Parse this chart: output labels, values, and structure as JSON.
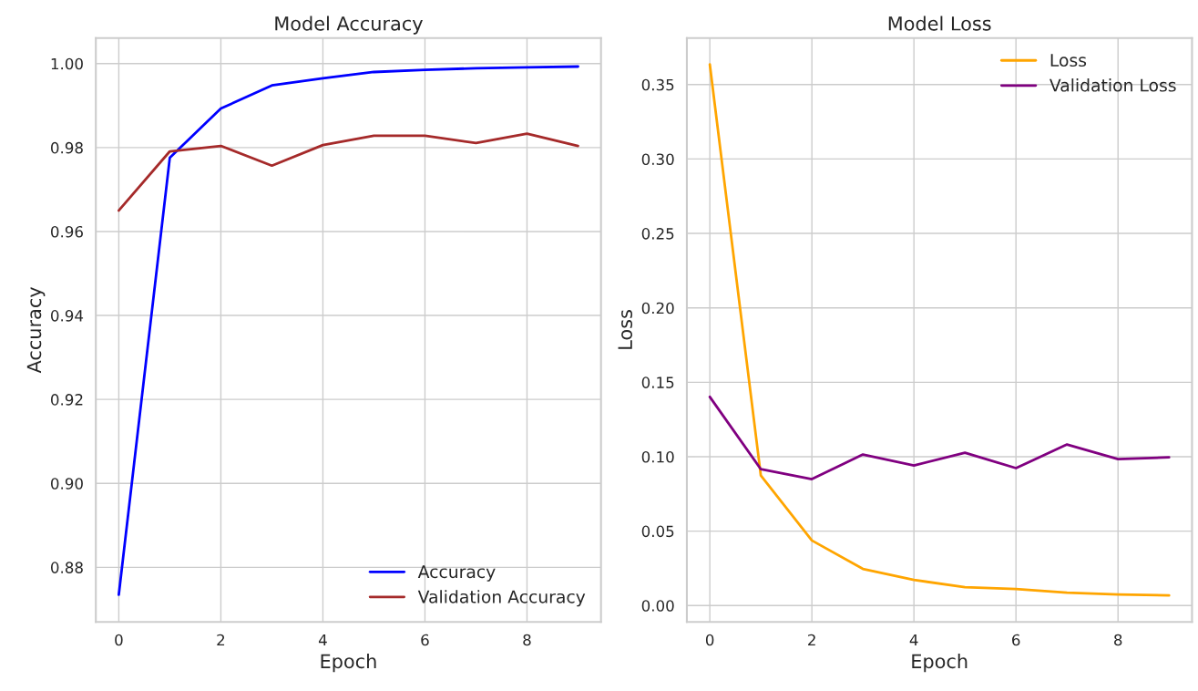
{
  "chart_data": [
    {
      "type": "line",
      "title": "Model Accuracy",
      "xlabel": "Epoch",
      "ylabel": "Accuracy",
      "x": [
        0,
        1,
        2,
        3,
        4,
        5,
        6,
        7,
        8,
        9
      ],
      "series": [
        {
          "name": "Accuracy",
          "color": "#0000ff",
          "values": [
            0.8735,
            0.9776,
            0.9893,
            0.9948,
            0.9965,
            0.998,
            0.9985,
            0.9989,
            0.9991,
            0.9993
          ]
        },
        {
          "name": "Validation Accuracy",
          "color": "#a52a2a",
          "values": [
            0.965,
            0.9791,
            0.9804,
            0.9757,
            0.9806,
            0.9828,
            0.9828,
            0.9811,
            0.9833,
            0.9804
          ]
        }
      ],
      "xlim": [
        -0.45,
        9.45
      ],
      "xticks": [
        0,
        2,
        4,
        6,
        8
      ],
      "ylim": [
        0.867,
        1.0061
      ],
      "yticks": [
        {
          "value": 0.88,
          "label": "0.88"
        },
        {
          "value": 0.9,
          "label": "0.90"
        },
        {
          "value": 0.92,
          "label": "0.92"
        },
        {
          "value": 0.94,
          "label": "0.94"
        },
        {
          "value": 0.96,
          "label": "0.96"
        },
        {
          "value": 0.98,
          "label": "0.98"
        },
        {
          "value": 1.0,
          "label": "1.00"
        }
      ],
      "grid": true,
      "legend": "bottom right"
    },
    {
      "type": "line",
      "title": "Model Loss",
      "xlabel": "Epoch",
      "ylabel": "Loss",
      "x": [
        0,
        1,
        2,
        3,
        4,
        5,
        6,
        7,
        8,
        9
      ],
      "series": [
        {
          "name": "Loss",
          "color": "#ffa500",
          "values": [
            0.3635,
            0.0873,
            0.0437,
            0.0246,
            0.0172,
            0.0123,
            0.0111,
            0.0086,
            0.0074,
            0.0068
          ]
        },
        {
          "name": "Validation Loss",
          "color": "#800080",
          "values": [
            0.1402,
            0.0916,
            0.0849,
            0.1015,
            0.0941,
            0.1027,
            0.0923,
            0.1082,
            0.0984,
            0.0996
          ]
        }
      ],
      "xlim": [
        -0.45,
        9.45
      ],
      "xticks": [
        0,
        2,
        4,
        6,
        8
      ],
      "ylim": [
        -0.011,
        0.3813
      ],
      "yticks": [
        {
          "value": 0,
          "label": "0.00"
        },
        {
          "value": 0.05,
          "label": "0.05"
        },
        {
          "value": 0.1,
          "label": "0.10"
        },
        {
          "value": 0.15,
          "label": "0.15"
        },
        {
          "value": 0.2,
          "label": "0.20"
        },
        {
          "value": 0.25,
          "label": "0.25"
        },
        {
          "value": 0.3,
          "label": "0.30"
        },
        {
          "value": 0.35,
          "label": "0.35"
        }
      ],
      "grid": true,
      "legend": "top right"
    }
  ]
}
